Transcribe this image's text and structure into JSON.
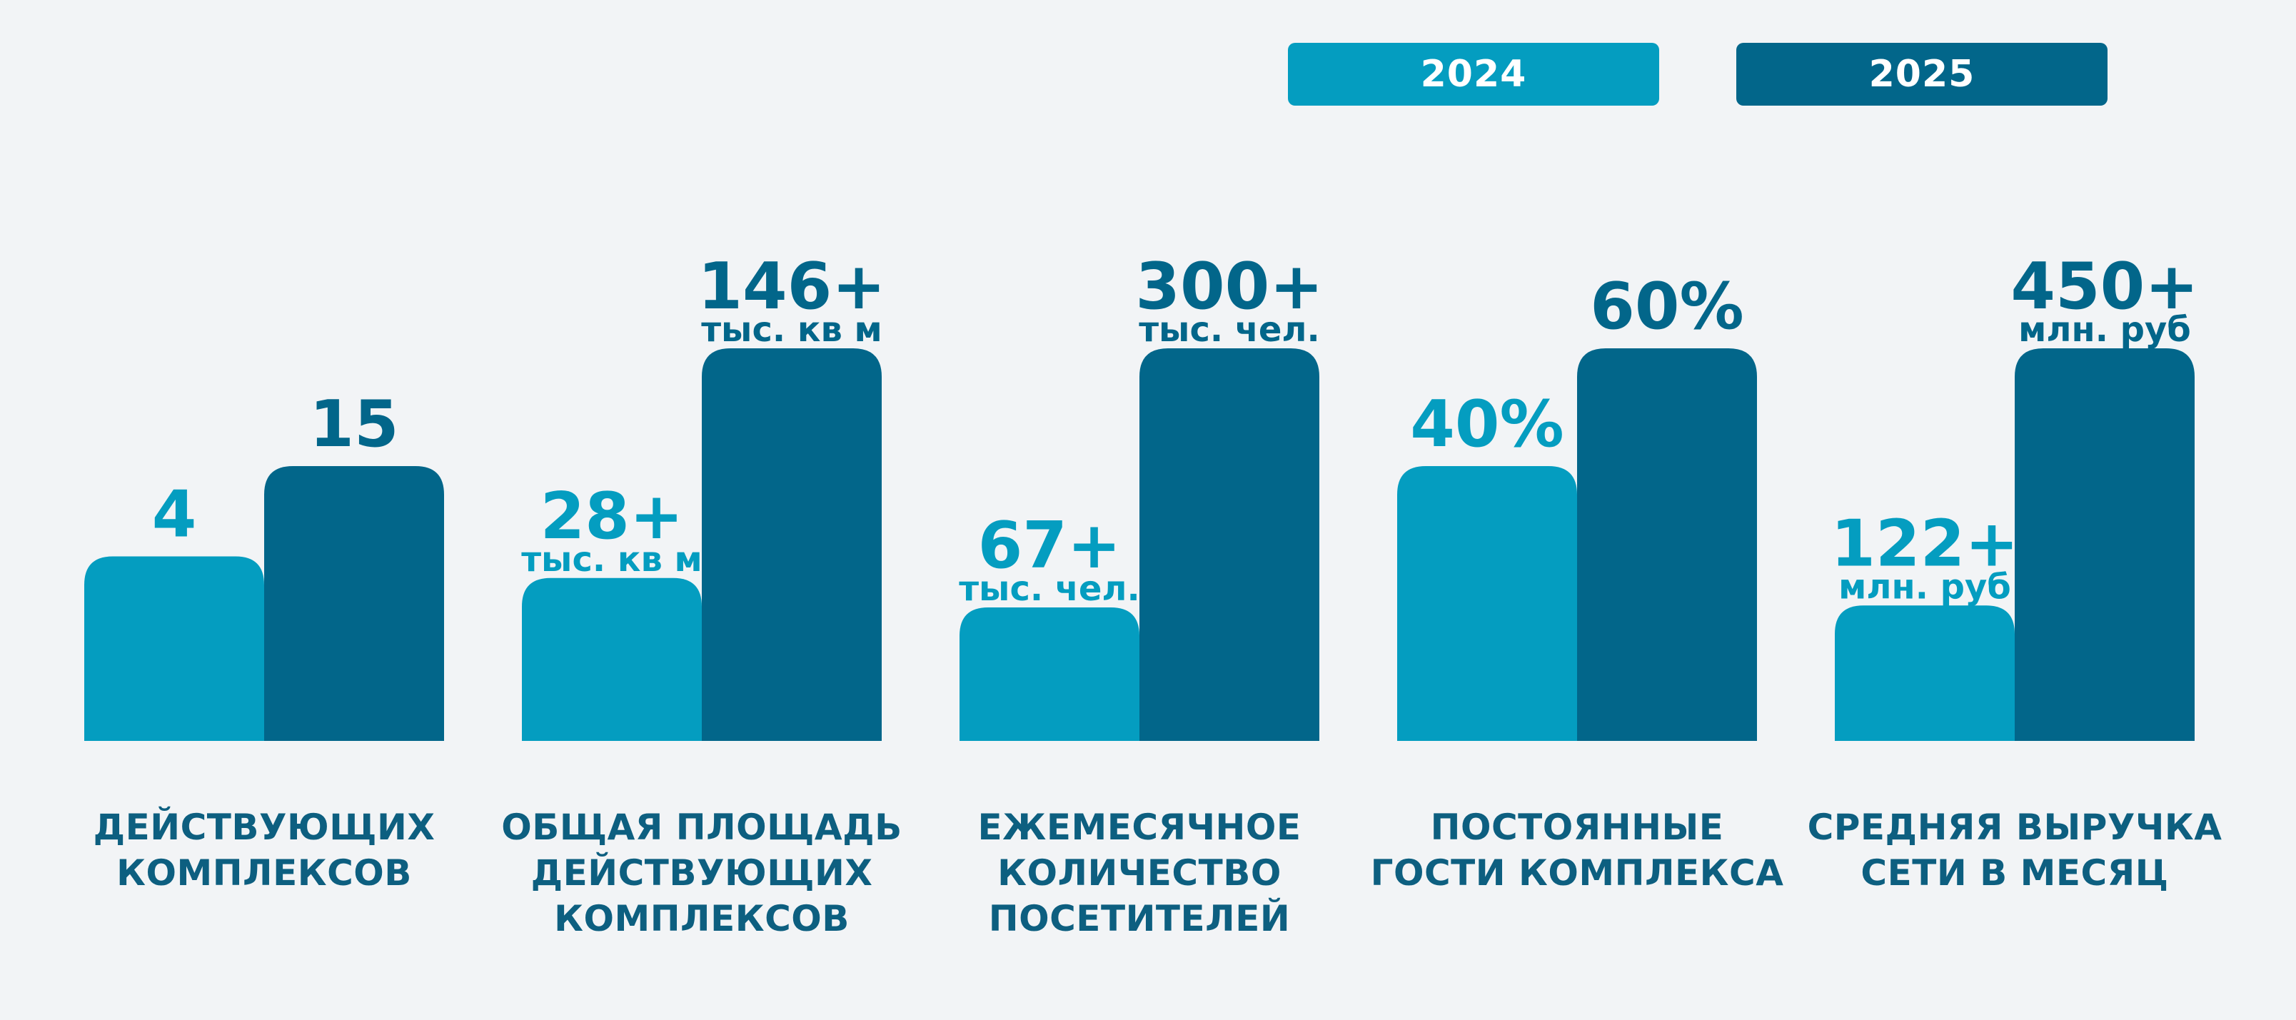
{
  "legend": {
    "items": [
      {
        "label": "2024",
        "color": "#049dc0"
      },
      {
        "label": "2025",
        "color": "#02668a"
      }
    ]
  },
  "colors": {
    "series_2024": "#049dc0",
    "series_2025": "#02668a",
    "category_text": "#0d5f80",
    "background": "#f2f4f6"
  },
  "chart_data": {
    "type": "bar",
    "categories": [
      {
        "lines": [
          "ДЕЙСТВУЮЩИХ",
          "КОМПЛЕКСОВ"
        ]
      },
      {
        "lines": [
          "ОБЩАЯ ПЛОЩАДЬ",
          "ДЕЙСТВУЮЩИХ",
          "КОМПЛЕКСОВ"
        ]
      },
      {
        "lines": [
          "ЕЖЕМЕСЯЧНОЕ",
          "КОЛИЧЕСТВО",
          "ПОСЕТИТЕЛЕЙ"
        ]
      },
      {
        "lines": [
          "ПОСТОЯННЫЕ",
          "ГОСТИ КОМПЛЕКСА"
        ]
      },
      {
        "lines": [
          "СРЕДНЯЯ ВЫРУЧКА",
          "СЕТИ В МЕСЯЦ"
        ]
      }
    ],
    "series": [
      {
        "name": "2024",
        "relative_heights": [
          0.47,
          0.415,
          0.34,
          0.7,
          0.345
        ],
        "labels": [
          {
            "value": "4",
            "unit": ""
          },
          {
            "value": "28+",
            "unit": "тыс. кв м"
          },
          {
            "value": "67+",
            "unit": "тыс. чел."
          },
          {
            "value": "40%",
            "unit": ""
          },
          {
            "value": "122+",
            "unit": "млн. руб"
          }
        ]
      },
      {
        "name": "2025",
        "relative_heights": [
          0.7,
          1.0,
          1.0,
          1.0,
          1.0
        ],
        "labels": [
          {
            "value": "15",
            "unit": ""
          },
          {
            "value": "146+",
            "unit": "тыс. кв м"
          },
          {
            "value": "300+",
            "unit": "тыс. чел."
          },
          {
            "value": "60%",
            "unit": ""
          },
          {
            "value": "450+",
            "unit": "млн. руб"
          }
        ]
      }
    ]
  }
}
